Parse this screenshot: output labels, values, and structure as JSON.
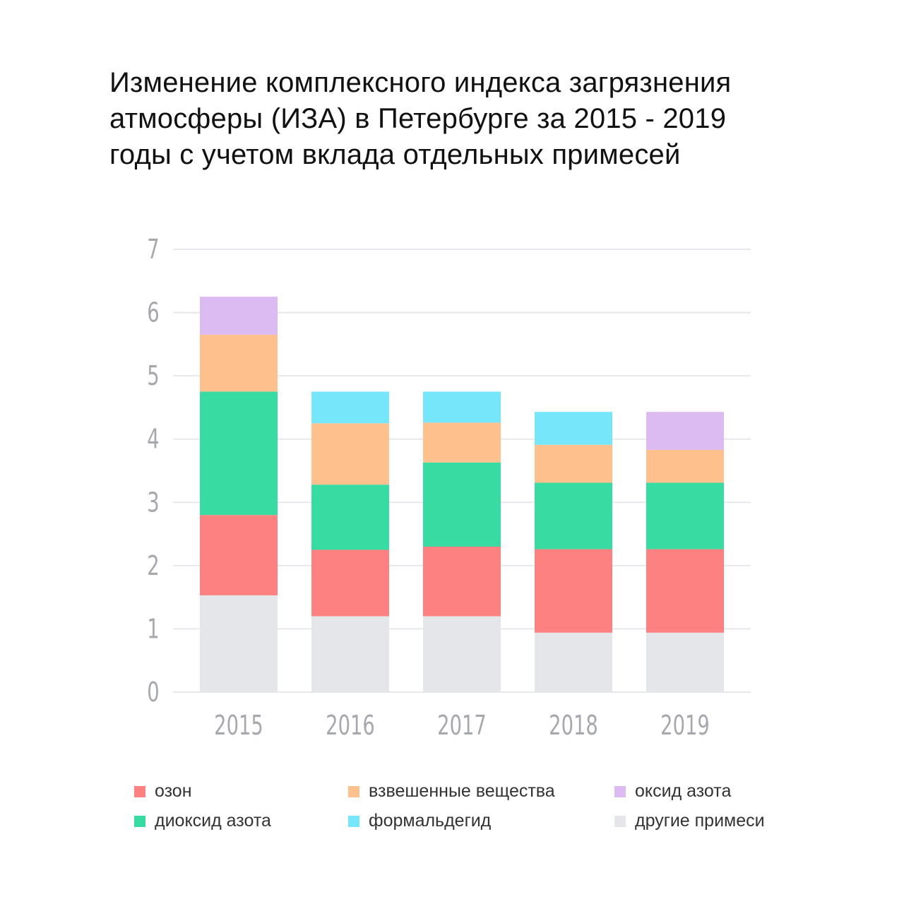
{
  "title_lines": [
    "Изменение комплексного индекса загрязнения",
    "атмосферы (ИЗА) в Петербурге за 2015 - 2019",
    "годы с учетом вклада отдельных примесей"
  ],
  "chart_data": {
    "type": "bar",
    "stacked": true,
    "title": "Изменение комплексного индекса загрязнения атмосферы (ИЗА) в Петербурге за 2015 - 2019 годы с учетом вклада отдельных примесей",
    "xlabel": "",
    "ylabel": "",
    "ylim": [
      0,
      7
    ],
    "yticks": [
      "0",
      "1",
      "2",
      "3",
      "4",
      "5",
      "6",
      "7"
    ],
    "categories": [
      "2015",
      "2016",
      "2017",
      "2018",
      "2019"
    ],
    "grid": true,
    "legend_position": "bottom",
    "series": [
      {
        "name": "другие примеси",
        "color": "#e4e6e9",
        "values": [
          1.53,
          1.2,
          1.2,
          0.94,
          0.94
        ]
      },
      {
        "name": "озон",
        "color": "#fe8182",
        "values": [
          1.27,
          1.05,
          1.1,
          1.32,
          1.32
        ]
      },
      {
        "name": "диоксид азота",
        "color": "#38dba1",
        "values": [
          1.95,
          1.03,
          1.33,
          1.05,
          1.05
        ]
      },
      {
        "name": "взвешенные вещества",
        "color": "#fec18d",
        "values": [
          0.9,
          0.97,
          0.63,
          0.6,
          0.52
        ]
      },
      {
        "name": "формальдегид",
        "color": "#76e6fb",
        "values": [
          0,
          0.5,
          0.49,
          0.52,
          0
        ]
      },
      {
        "name": "оксид азота",
        "color": "#dcbbf3",
        "values": [
          0.6,
          0,
          0,
          0,
          0.6
        ]
      }
    ]
  },
  "legend": [
    {
      "label": "озон",
      "color": "#fe8182"
    },
    {
      "label": "взвешенные вещества",
      "color": "#fec18d"
    },
    {
      "label": "оксид азота",
      "color": "#dcbbf3"
    },
    {
      "label": "диоксид азота",
      "color": "#38dba1"
    },
    {
      "label": "формальдегид",
      "color": "#76e6fb"
    },
    {
      "label": "другие примеси",
      "color": "#e4e6e9"
    }
  ]
}
